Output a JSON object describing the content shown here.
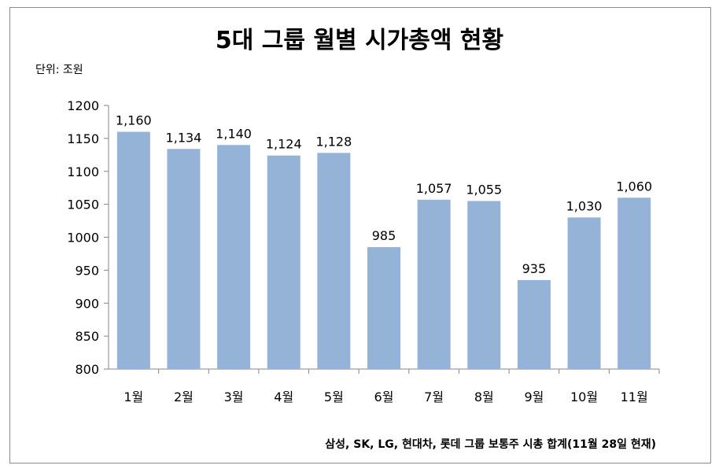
{
  "chart_data": {
    "type": "bar",
    "title": "5대 그룹 월별 시가총액 현황",
    "unit_label": "단위: 조원",
    "footnote": "삼성, SK, LG, 현대차, 롯데 그룹 보통주 시총 합계(11월 28일 현재)",
    "categories": [
      "1월",
      "2월",
      "3월",
      "4월",
      "5월",
      "6월",
      "7월",
      "8월",
      "9월",
      "10월",
      "11월"
    ],
    "values": [
      1160,
      1134,
      1140,
      1124,
      1128,
      985,
      1057,
      1055,
      935,
      1030,
      1060
    ],
    "data_labels": [
      "1,160",
      "1,134",
      "1,140",
      "1,124",
      "1,128",
      "985",
      "1,057",
      "1,055",
      "935",
      "1,030",
      "1,060"
    ],
    "yticks": [
      "800",
      "850",
      "900",
      "950",
      "1000",
      "1050",
      "1100",
      "1150",
      "1200"
    ],
    "ylim": [
      800,
      1200
    ],
    "xlabel": "",
    "ylabel": "",
    "grid": false,
    "legend": "none",
    "bar_color": "#95b3d7"
  }
}
